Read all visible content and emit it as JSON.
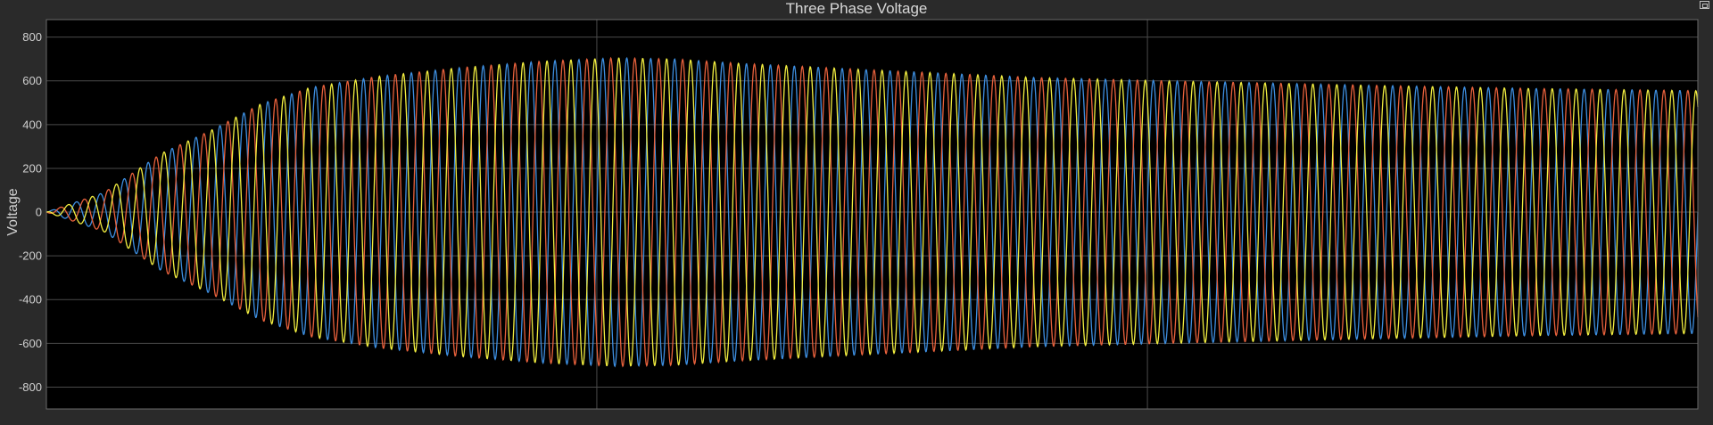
{
  "window": {
    "title": "Three Phase Voltage"
  },
  "chart_data": {
    "type": "line",
    "title": "Three Phase Voltage",
    "xlabel": "",
    "ylabel": "Voltage",
    "ylim": [
      -900,
      880
    ],
    "yticks": [
      -800,
      -600,
      -400,
      -200,
      0,
      200,
      400,
      600,
      800
    ],
    "grid": true,
    "background": "#000000",
    "axes_color": "#6a6a6a",
    "grid_color": "#4a4a4a",
    "x_domain": [
      0,
      1
    ],
    "cycles_in_view": 69,
    "vertical_gridlines_at": [
      0.3333,
      0.6667
    ],
    "envelope": {
      "x": [
        0,
        0.035,
        0.07,
        0.1,
        0.13,
        0.16,
        0.2,
        0.25,
        0.3,
        0.345,
        0.38,
        0.42,
        0.5,
        0.6,
        0.68,
        0.8,
        0.9,
        1.0
      ],
      "amplitude": [
        0,
        90,
        270,
        375,
        495,
        570,
        620,
        660,
        690,
        705,
        700,
        680,
        650,
        615,
        600,
        580,
        565,
        555
      ]
    },
    "series": [
      {
        "color": "#3d8ee0",
        "phase_deg": 0
      },
      {
        "color": "#e8613c",
        "phase_deg": 120
      },
      {
        "color": "#f2ee40",
        "phase_deg": 240
      }
    ]
  }
}
